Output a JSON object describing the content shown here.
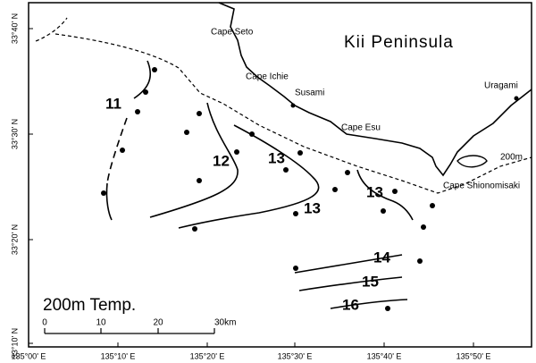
{
  "map": {
    "title": "Kii Peninsula",
    "label": "200m Temp.",
    "isobath_label": "200m",
    "places": [
      "Cape Seto",
      "Cape Ichie",
      "Susami",
      "Cape Esu",
      "Uragami",
      "Cape Shionomisaki"
    ],
    "contour_labels": [
      "11",
      "12",
      "13",
      "13",
      "13",
      "14",
      "15",
      "16"
    ],
    "x_ticks": [
      "135°00' E",
      "135°10' E",
      "135°20' E",
      "135°30' E",
      "135°40' E",
      "135°50' E"
    ],
    "y_ticks": [
      "33°40' N",
      "33°30' N",
      "33°20' N",
      "33°10' N"
    ],
    "scale": {
      "ticks": [
        "0",
        "10",
        "20"
      ],
      "end": "30km"
    }
  }
}
